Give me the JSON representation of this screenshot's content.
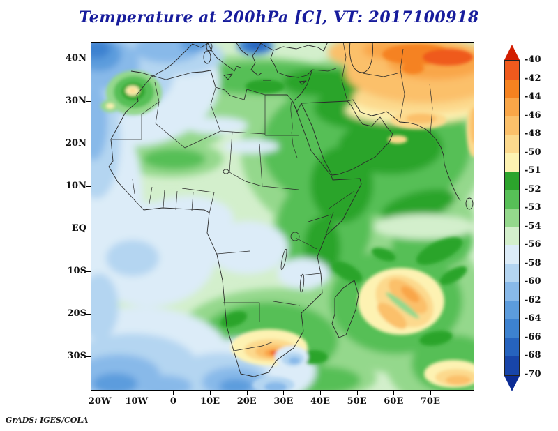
{
  "title": "Temperature at 200hPa [C], VT: 2017100918",
  "title_color": "#171c9c",
  "footer": "GrADS: IGES/COLA",
  "chart_data": {
    "type": "heatmap",
    "plot_style": "filled contour map",
    "variable": "Temperature",
    "level": "200hPa",
    "units": "C",
    "valid_time": "2017100918",
    "region": "Africa, Middle East and surrounding oceans",
    "title": "Temperature at 200hPa [C], VT: 2017100918",
    "x_ticks": [
      "20W",
      "10W",
      "0",
      "10E",
      "20E",
      "30E",
      "40E",
      "50E",
      "60E",
      "70E"
    ],
    "y_ticks": [
      "40N",
      "30N",
      "20N",
      "10N",
      "EQ",
      "10S",
      "20S",
      "30S"
    ],
    "grid": false,
    "colorbar": {
      "position": "right",
      "levels": [
        "-40",
        "-42",
        "-44",
        "-46",
        "-48",
        "-50",
        "-51",
        "-52",
        "-53",
        "-54",
        "-56",
        "-58",
        "-60",
        "-62",
        "-64",
        "-66",
        "-68",
        "-70"
      ],
      "segment_colors": [
        "#ef5a1d",
        "#f58220",
        "#f9a648",
        "#fbc06a",
        "#fcd98d",
        "#fdf2b2",
        "#2ca42c",
        "#57bf57",
        "#94d88c",
        "#d3efcc",
        "#dcecf8",
        "#b4d5f1",
        "#88b9e9",
        "#5c9cdd",
        "#3d82d0",
        "#2663be",
        "#1845a9"
      ],
      "arrow_top_color": "#d21d00",
      "arrow_bottom_color": "#0c2c95"
    },
    "field_summary": [
      {
        "region": "NE Atlantic / NW corner (25W-5W, 30N-42N)",
        "approx_temp_c": "-56 to -64"
      },
      {
        "region": "Morocco spot (~8W, 31N)",
        "approx_temp_c": "-48 to -51 core in green ring"
      },
      {
        "region": "Mediterranean / North African coast band",
        "approx_temp_c": "-51 to -53"
      },
      {
        "region": "Egypt, Sudan, Arabia, Horn of Africa, W Indian Ocean",
        "approx_temp_c": "-51 to -53"
      },
      {
        "region": "Turkey, Caspian, Iran, Central Asia (top-right)",
        "approx_temp_c": "-42 to -48"
      },
      {
        "region": "Black Sea spot (top edge, ~35E)",
        "approx_temp_c": "-62 to -66"
      },
      {
        "region": "Central Africa / Congo basin",
        "approx_temp_c": "-54 to -56"
      },
      {
        "region": "Equatorial Atlantic (west edge)",
        "approx_temp_c": "-56 to -58"
      },
      {
        "region": "South Atlantic (bottom-left corner)",
        "approx_temp_c": "-58 to -64"
      },
      {
        "region": "South Africa interior spot (~22E, 31S)",
        "approx_temp_c": "-42 to -50 core"
      },
      {
        "region": "SW Indian Ocean east of Madagascar (50E-65E, 12S-25S)",
        "approx_temp_c": "-44 to -50"
      },
      {
        "region": "Bottom-right corner (65E-80E, 30S-37S)",
        "approx_temp_c": "-46 to -52"
      }
    ]
  }
}
